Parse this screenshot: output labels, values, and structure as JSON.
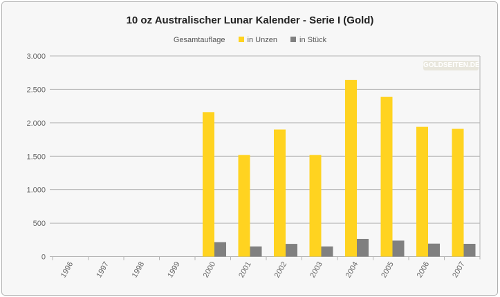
{
  "chart_data": {
    "type": "bar",
    "title": "10 oz Australischer Lunar Kalender - Serie I (Gold)",
    "legend_title": "Gesamtauflage",
    "legend_placement": "top",
    "categories": [
      "1996",
      "1997",
      "1998",
      "1999",
      "2000",
      "2001",
      "2002",
      "2003",
      "2004",
      "2005",
      "2006",
      "2007"
    ],
    "series": [
      {
        "name": "in Unzen",
        "color": "#ffd320",
        "values": [
          0,
          0,
          0,
          0,
          2160,
          1520,
          1900,
          1520,
          2640,
          2390,
          1940,
          1910
        ]
      },
      {
        "name": "in Stück",
        "color": "#808080",
        "values": [
          0,
          0,
          0,
          0,
          216,
          152,
          190,
          152,
          264,
          239,
          194,
          191
        ]
      }
    ],
    "ylim": [
      0,
      3000
    ],
    "yticks": [
      0,
      500,
      1000,
      1500,
      2000,
      2500,
      3000
    ],
    "ytick_labels": [
      "0",
      "500",
      "1.000",
      "1.500",
      "2.000",
      "2.500",
      "3.000"
    ],
    "grid": true,
    "xlabel": "",
    "ylabel": ""
  },
  "watermark": "GOLDSEITEN.DE"
}
